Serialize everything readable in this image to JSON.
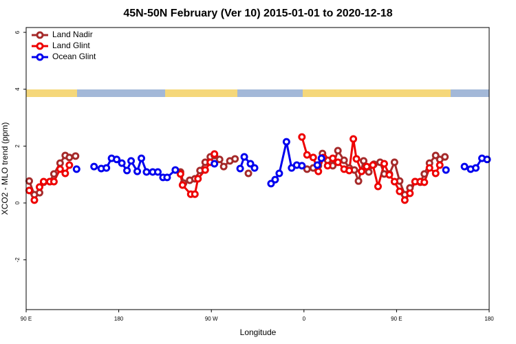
{
  "chart_data": {
    "type": "line",
    "title": "45N-50N February (Ver 10)   2015-01-01 to 2020-12-18",
    "x_label": "Longitude",
    "y_label": "XCO2 - MLO trend (ppm)",
    "xlim": [
      90,
      540
    ],
    "xticks": [
      {
        "value": 90,
        "label": "90 E"
      },
      {
        "value": 180,
        "label": "180"
      },
      {
        "value": 270,
        "label": "90 W"
      },
      {
        "value": 360,
        "label": "0"
      },
      {
        "value": 450,
        "label": "90 E"
      },
      {
        "value": 540,
        "label": "180"
      }
    ],
    "ylim": [
      -3.75,
      6.17
    ],
    "yticks": [
      -2,
      0,
      2,
      4,
      6
    ],
    "legend": "top-left",
    "series": [
      {
        "name": "Land Nadir",
        "color": "#a52a2a",
        "x": [
          93,
          98,
          103,
          107,
          113,
          117,
          123,
          128,
          132,
          138,
          null,
          240,
          243,
          249,
          254,
          259,
          264,
          269,
          273,
          278,
          282,
          288,
          293,
          null,
          306,
          null,
          363,
          369,
          374,
          378,
          383,
          388,
          393,
          399,
          404,
          409,
          413,
          418,
          423,
          428,
          434,
          438,
          443,
          448,
          453,
          458,
          463,
          468,
          473,
          477,
          482,
          488,
          492,
          497
        ],
        "values": [
          0.77,
          0.29,
          0.36,
          0.73,
          0.75,
          1.02,
          1.4,
          1.67,
          1.6,
          1.65,
          null,
          1.09,
          0.7,
          0.8,
          0.85,
          1.14,
          1.43,
          1.62,
          1.67,
          1.53,
          1.28,
          1.48,
          1.55,
          null,
          1.04,
          null,
          1.19,
          1.23,
          1.31,
          1.74,
          1.5,
          1.31,
          1.84,
          1.5,
          1.23,
          1.16,
          0.77,
          1.48,
          1.09,
          1.36,
          1.43,
          1.02,
          1.02,
          1.43,
          0.77,
          0.29,
          0.53,
          0.75,
          0.73,
          1.02,
          1.4,
          1.67,
          1.53,
          1.62
        ]
      },
      {
        "name": "Land Glint",
        "color": "#ee0000",
        "x": [
          93,
          98,
          103,
          107,
          113,
          117,
          123,
          128,
          132,
          null,
          240,
          242,
          250,
          254,
          257,
          264,
          269,
          273,
          null,
          358,
          363,
          369,
          374,
          379,
          383,
          388,
          393,
          399,
          404,
          408,
          411,
          416,
          421,
          427,
          432,
          438,
          443,
          448,
          453,
          458,
          463,
          468,
          473,
          477,
          482,
          488,
          492
        ],
        "values": [
          0.44,
          0.1,
          0.56,
          0.75,
          0.75,
          0.75,
          1.19,
          1.04,
          1.33,
          null,
          1.02,
          0.63,
          0.31,
          0.31,
          0.85,
          1.16,
          1.43,
          1.72,
          null,
          2.32,
          1.69,
          1.6,
          1.11,
          1.6,
          1.31,
          1.57,
          1.43,
          1.19,
          1.14,
          2.25,
          1.55,
          1.11,
          1.28,
          1.33,
          0.58,
          1.38,
          0.99,
          0.75,
          0.41,
          0.1,
          0.34,
          0.75,
          0.75,
          0.73,
          1.23,
          1.04,
          1.33
        ]
      },
      {
        "name": "Ocean Glint",
        "color": "#0000ee",
        "x": [
          139,
          null,
          156,
          163,
          168,
          173,
          178,
          183,
          188,
          192,
          198,
          202,
          207,
          213,
          218,
          223,
          227,
          235,
          null,
          273,
          null,
          298,
          302,
          308,
          312,
          null,
          328,
          332,
          336,
          343,
          348,
          353,
          358,
          null,
          373,
          377,
          null,
          498,
          null,
          516,
          522,
          527,
          533,
          538
        ],
        "values": [
          1.19,
          null,
          1.28,
          1.21,
          1.23,
          1.57,
          1.53,
          1.4,
          1.14,
          1.48,
          1.11,
          1.57,
          1.09,
          1.09,
          1.09,
          0.9,
          0.9,
          1.16,
          null,
          1.38,
          null,
          1.21,
          1.62,
          1.38,
          1.23,
          null,
          0.68,
          0.82,
          1.04,
          2.15,
          1.23,
          1.33,
          1.31,
          null,
          1.33,
          1.57,
          null,
          1.16,
          null,
          1.28,
          1.19,
          1.23,
          1.57,
          1.53
        ]
      }
    ]
  }
}
